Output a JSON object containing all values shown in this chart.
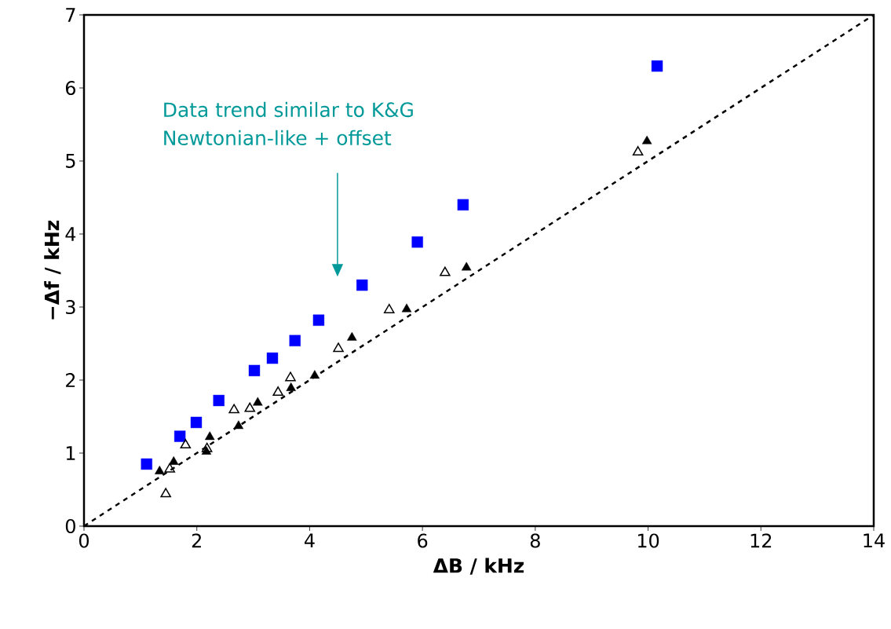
{
  "chart_data": {
    "type": "scatter",
    "xlabel": "ΔB  / kHz",
    "ylabel": "−Δf  / kHz",
    "xlim": [
      0,
      14
    ],
    "xticks": [
      0,
      2,
      4,
      6,
      8,
      10,
      12,
      14
    ],
    "ylim": [
      0,
      7
    ],
    "yticks": [
      0,
      1,
      2,
      3,
      4,
      5,
      6,
      7
    ],
    "grid": false,
    "annotations": [
      "Data trend similar to K&G",
      "Newtonian-like  + offset"
    ],
    "series": [
      {
        "marker": "square",
        "color": "#0000ff",
        "x": [
          1.11,
          1.7,
          1.99,
          2.39,
          3.02,
          3.34,
          3.74,
          4.16,
          4.93,
          5.91,
          6.72,
          10.16
        ],
        "values": [
          0.85,
          1.23,
          1.42,
          1.72,
          2.13,
          2.3,
          2.54,
          2.82,
          3.3,
          3.89,
          4.4,
          6.3
        ]
      },
      {
        "marker": "triangle",
        "color": "#000000",
        "x": [
          1.34,
          1.59,
          2.17,
          2.23,
          2.74,
          3.08,
          3.67,
          4.09,
          4.75,
          5.72,
          6.78,
          9.98
        ],
        "values": [
          0.75,
          0.88,
          1.02,
          1.22,
          1.37,
          1.69,
          1.89,
          2.06,
          2.58,
          2.97,
          3.54,
          5.27
        ]
      },
      {
        "marker": "triangle-open",
        "color": "#000000",
        "x": [
          1.45,
          1.52,
          1.8,
          2.18,
          2.66,
          2.94,
          3.44,
          3.66,
          4.51,
          5.41,
          6.4,
          9.82
        ],
        "values": [
          0.44,
          0.78,
          1.11,
          1.06,
          1.59,
          1.61,
          1.83,
          2.03,
          2.43,
          2.96,
          3.47,
          5.12
        ]
      },
      {
        "type": "line",
        "line_style": "dashed",
        "color": "#000000",
        "x": [
          0,
          14
        ],
        "values": [
          0,
          7
        ]
      }
    ]
  }
}
